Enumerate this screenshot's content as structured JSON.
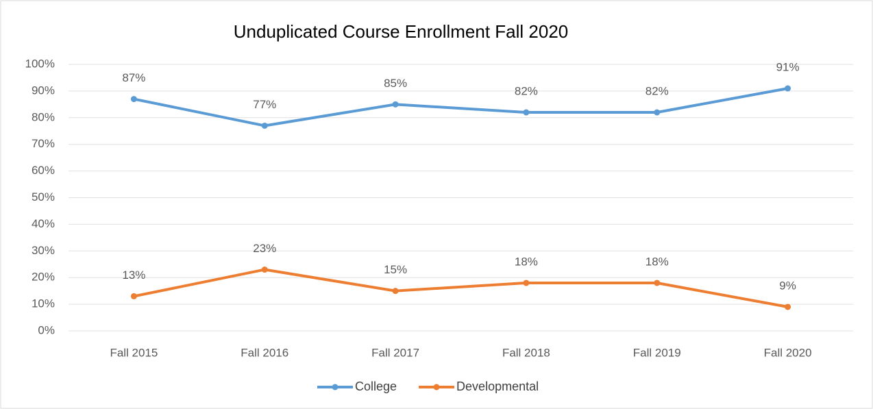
{
  "chart_data": {
    "type": "line",
    "title": "Unduplicated Course Enrollment Fall 2020",
    "categories": [
      "Fall 2015",
      "Fall 2016",
      "Fall 2017",
      "Fall 2018",
      "Fall 2019",
      "Fall 2020"
    ],
    "series": [
      {
        "name": "College",
        "color": "#5b9bd5",
        "values": [
          87,
          77,
          85,
          82,
          82,
          91
        ],
        "value_labels": [
          "87%",
          "77%",
          "85%",
          "82%",
          "82%",
          "91%"
        ]
      },
      {
        "name": "Developmental",
        "color": "#ed7d31",
        "values": [
          13,
          23,
          15,
          18,
          18,
          9
        ],
        "value_labels": [
          "13%",
          "23%",
          "15%",
          "18%",
          "18%",
          "9%"
        ]
      }
    ],
    "ylim": [
      0,
      100
    ],
    "yticks": [
      {
        "value": 0,
        "label": "0%"
      },
      {
        "value": 10,
        "label": "10%"
      },
      {
        "value": 20,
        "label": "20%"
      },
      {
        "value": 30,
        "label": "30%"
      },
      {
        "value": 40,
        "label": "40%"
      },
      {
        "value": 50,
        "label": "50%"
      },
      {
        "value": 60,
        "label": "60%"
      },
      {
        "value": 70,
        "label": "70%"
      },
      {
        "value": 80,
        "label": "80%"
      },
      {
        "value": 90,
        "label": "90%"
      },
      {
        "value": 100,
        "label": "100%"
      }
    ],
    "grid": true,
    "legend": "bottom"
  }
}
